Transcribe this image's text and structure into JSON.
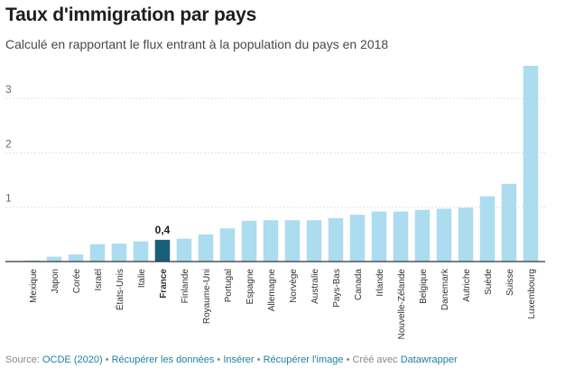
{
  "header": {
    "title": "Taux d'immigration par pays",
    "subtitle": "Calculé en rapportant le flux entrant à la population du pays en 2018"
  },
  "footer": {
    "source_prefix": "Source:",
    "source_link": "OCDE (2020)",
    "separator": "•",
    "link_data": "Récupérer les données",
    "link_embed": "Insérer",
    "link_image": "Récupérer l'image",
    "created_with": "Créé avec",
    "link_datawrapper": "Datawrapper"
  },
  "colors": {
    "bar": "#acdcef",
    "highlight": "#1b5e79",
    "grid": "#e2e2e2",
    "axis": "#333333"
  },
  "chart_data": {
    "type": "bar",
    "title": "Taux d'immigration par pays",
    "subtitle": "Calculé en rapportant le flux entrant à la population du pays en 2018",
    "xlabel": "",
    "ylabel": "",
    "ylim": [
      0,
      3.65
    ],
    "yticks": [
      "1",
      "2",
      "3"
    ],
    "grid": true,
    "legend": "none",
    "categories": [
      "Mexique",
      "Japon",
      "Corée",
      "Israël",
      "États-Unis",
      "Italie",
      "France",
      "Finlande",
      "Royaume-Uni",
      "Portugal",
      "Espagne",
      "Allemagne",
      "Norvège",
      "Australie",
      "Pays-Bas",
      "Canada",
      "Irlande",
      "Nouvelle-Zélande",
      "Belgique",
      "Danemark",
      "Autriche",
      "Suède",
      "Suisse",
      "Luxembourg"
    ],
    "values": [
      0.02,
      0.09,
      0.13,
      0.32,
      0.33,
      0.37,
      0.4,
      0.42,
      0.5,
      0.61,
      0.75,
      0.76,
      0.76,
      0.76,
      0.8,
      0.86,
      0.92,
      0.92,
      0.95,
      0.97,
      0.99,
      1.2,
      1.43,
      3.6
    ],
    "highlight_category": "France",
    "annotations": [
      {
        "category": "France",
        "text": "0,4"
      }
    ]
  }
}
